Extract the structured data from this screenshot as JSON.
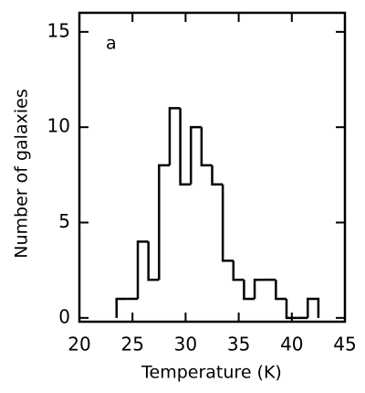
{
  "chart_data": {
    "type": "histogram",
    "annotation": "a",
    "x_label": "Temperature (K)",
    "y_label": "Number of galaxies",
    "bins": [
      23.5,
      24.5,
      25.5,
      26.5,
      27.5,
      28.5,
      29.5,
      30.5,
      31.5,
      32.5,
      33.5,
      34.5,
      35.5,
      36.5,
      37.5,
      38.5,
      39.5,
      40.5,
      41.5,
      42.5
    ],
    "values": [
      1,
      1,
      4,
      2,
      8,
      11,
      7,
      10,
      8,
      7,
      3,
      2,
      1,
      2,
      2,
      1,
      0,
      0,
      1
    ],
    "color": "#000000",
    "xlim": [
      20,
      45
    ],
    "xticks": [
      20,
      25,
      30,
      35,
      40,
      45
    ],
    "ylim": [
      -0.2,
      16
    ],
    "yticks": [
      0,
      5,
      10,
      15
    ]
  }
}
